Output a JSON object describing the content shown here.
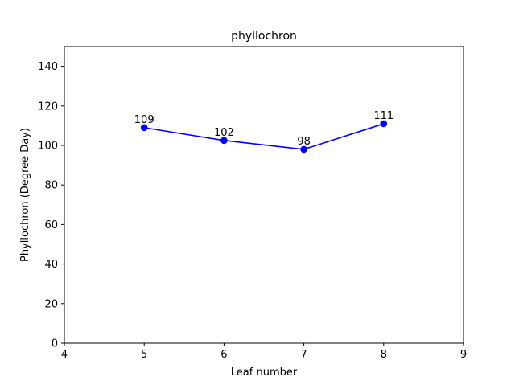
{
  "chart_data": {
    "type": "line",
    "title": "phyllochron",
    "xlabel": "Leaf number",
    "ylabel": "Phyllochron (Degree Day)",
    "xlim": [
      4,
      9
    ],
    "ylim": [
      0,
      150
    ],
    "xticks": [
      4,
      5,
      6,
      7,
      8,
      9
    ],
    "yticks": [
      0,
      20,
      40,
      60,
      80,
      100,
      120,
      140
    ],
    "grid": false,
    "series": [
      {
        "color": "#0000ff",
        "x": [
          5,
          6,
          7,
          8
        ],
        "y": [
          109,
          102.5,
          98,
          111
        ],
        "labels": [
          "109",
          "102",
          "98",
          "111"
        ]
      }
    ]
  }
}
